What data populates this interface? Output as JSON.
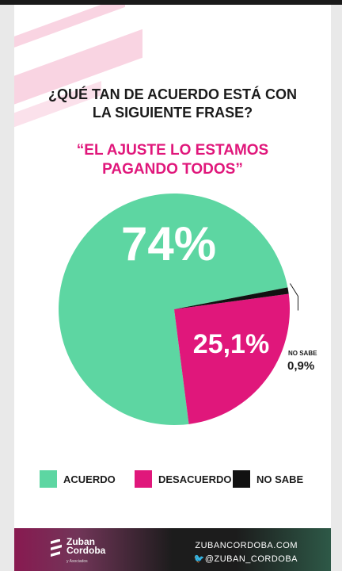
{
  "question": [
    "¿QUÉ TAN DE ACUERDO ESTÁ CON",
    "LA SIGUIENTE FRASE?"
  ],
  "quote": [
    "“EL AJUSTE LO ESTAMOS",
    "PAGANDO TODOS”"
  ],
  "chart_data": {
    "type": "pie",
    "slices": [
      {
        "label": "ACUERDO",
        "value": 74,
        "display": "74%",
        "color": "#5dd6a2"
      },
      {
        "label": "DESACUERDO",
        "value": 25.1,
        "display": "25,1%",
        "color": "#e0177b"
      },
      {
        "label": "NO SABE",
        "value": 0.9,
        "display": "0,9%",
        "color": "#111111"
      }
    ],
    "legend_position": "bottom"
  },
  "legend": [
    {
      "label": "ACUERDO",
      "color": "#5dd6a2"
    },
    {
      "label": "DESACUERDO",
      "color": "#e0177b"
    },
    {
      "label": "NO SABE",
      "color": "#111111"
    }
  ],
  "footer": {
    "logo_name": "Zuban",
    "logo_name2": "Cordoba",
    "logo_sub": "y Asociados",
    "website": "ZUBANCORDOBA.COM",
    "handle": "@ZUBAN_CORDOBA",
    "handle_icon": "twitter-icon"
  }
}
